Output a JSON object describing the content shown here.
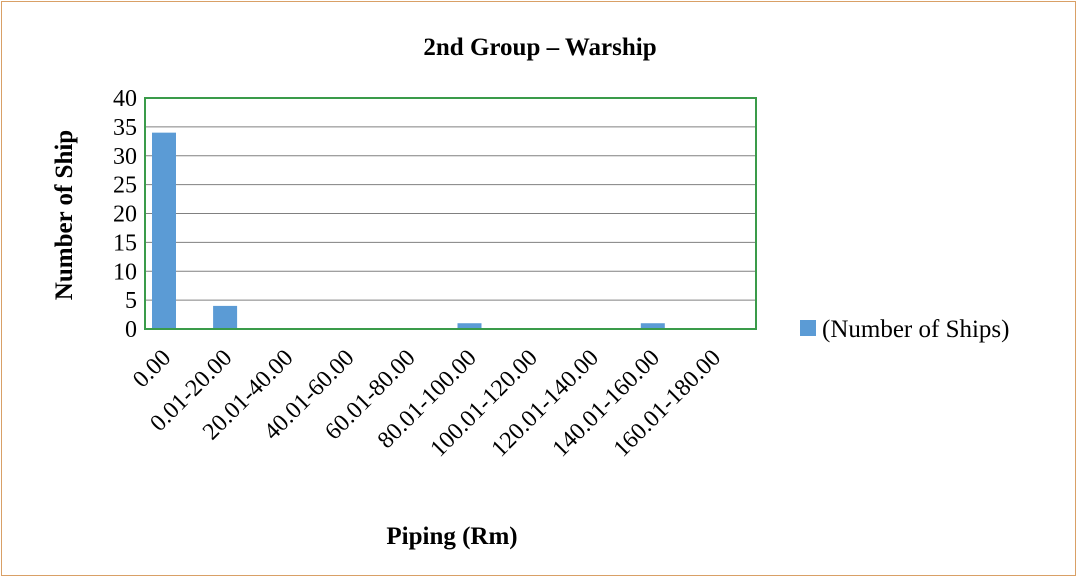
{
  "chart_data": {
    "type": "bar",
    "title": "2nd Group – Warship",
    "xlabel": "Piping (Rm)",
    "ylabel": "Number of Ship",
    "categories": [
      "0.00",
      "0.01-20.00",
      "20.01-40.00",
      "40.01-60.00",
      "60.01-80.00",
      "80.01-100.00",
      "100.01-120.00",
      "120.01-140.00",
      "140.01-160.00",
      "160.01-180.00"
    ],
    "series": [
      {
        "name": "(Number of Ships)",
        "values": [
          34,
          4,
          0,
          0,
          0,
          1,
          0,
          0,
          1,
          0
        ]
      }
    ],
    "ylim": [
      0,
      40
    ],
    "yticks": [
      0,
      5,
      10,
      15,
      20,
      25,
      30,
      35,
      40
    ],
    "grid": true,
    "legend": "right",
    "colors": {
      "bar": "#5b9bd5",
      "plot_border": "#3a9b4a",
      "gridline": "#808080",
      "frame_border": "#d9a066"
    }
  }
}
